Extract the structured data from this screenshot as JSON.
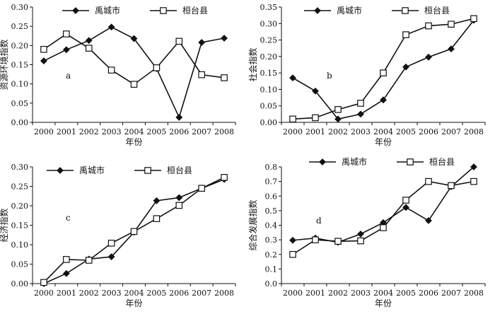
{
  "chart_data": [
    {
      "type": "line",
      "panel_label": "a",
      "xlabel": "年份",
      "ylabel": "资源环境指数",
      "ylim": [
        0,
        0.3
      ],
      "yticks": [
        "0.00",
        "0.05",
        "0.10",
        "0.15",
        "0.20",
        "0.25",
        "0.30"
      ],
      "categories": [
        "2000",
        "2001",
        "2002",
        "2003",
        "2004",
        "2005",
        "2006",
        "2007",
        "2008"
      ],
      "legend_position": "top",
      "series": [
        {
          "name": "禹城市",
          "marker": "diamond",
          "values": [
            0.16,
            0.189,
            0.213,
            0.248,
            0.218,
            0.14,
            0.013,
            0.208,
            0.219
          ]
        },
        {
          "name": "桓台县",
          "marker": "square",
          "values": [
            0.19,
            0.23,
            0.193,
            0.136,
            0.099,
            0.142,
            0.211,
            0.124,
            0.116
          ]
        }
      ]
    },
    {
      "type": "line",
      "panel_label": "b",
      "xlabel": "年份",
      "ylabel": "社会指数",
      "ylim": [
        0,
        0.35
      ],
      "yticks": [
        "0.00",
        "0.05",
        "0.10",
        "0.15",
        "0.20",
        "0.25",
        "0.30",
        "0.35"
      ],
      "categories": [
        "2000",
        "2001",
        "2002",
        "2003",
        "2004",
        "2005",
        "2006",
        "2007",
        "2008"
      ],
      "legend_position": "top",
      "series": [
        {
          "name": "禹城市",
          "marker": "diamond",
          "values": [
            0.135,
            0.095,
            0.01,
            0.025,
            0.068,
            0.168,
            0.198,
            0.223,
            0.31
          ]
        },
        {
          "name": "桓台县",
          "marker": "square",
          "values": [
            0.01,
            0.014,
            0.039,
            0.058,
            0.15,
            0.266,
            0.293,
            0.298,
            0.315
          ]
        }
      ]
    },
    {
      "type": "line",
      "panel_label": "c",
      "xlabel": "年份",
      "ylabel": "经济指数",
      "ylim": [
        0,
        0.3
      ],
      "yticks": [
        "0.00",
        "0.05",
        "0.10",
        "0.15",
        "0.20",
        "0.25",
        "0.30"
      ],
      "categories": [
        "2000",
        "2001",
        "2002",
        "2003",
        "2004",
        "2005",
        "2006",
        "2007",
        "2008"
      ],
      "legend_position": "top",
      "series": [
        {
          "name": "禹城市",
          "marker": "diamond",
          "values": [
            0.0,
            0.026,
            0.063,
            0.069,
            0.132,
            0.213,
            0.221,
            0.245,
            0.268
          ]
        },
        {
          "name": "桓台县",
          "marker": "square",
          "values": [
            0.003,
            0.062,
            0.06,
            0.104,
            0.134,
            0.167,
            0.201,
            0.245,
            0.273
          ]
        }
      ]
    },
    {
      "type": "line",
      "panel_label": "d",
      "xlabel": "年份",
      "ylabel": "综合发展指数",
      "ylim": [
        0,
        0.8
      ],
      "yticks": [
        "0.0",
        "0.1",
        "0.2",
        "0.3",
        "0.4",
        "0.5",
        "0.6",
        "0.7",
        "0.8"
      ],
      "categories": [
        "2000",
        "2001",
        "2002",
        "2003",
        "2004",
        "2005",
        "2006",
        "2007",
        "2008"
      ],
      "legend_position": "top",
      "series": [
        {
          "name": "禹城市",
          "marker": "diamond",
          "values": [
            0.297,
            0.312,
            0.283,
            0.34,
            0.418,
            0.522,
            0.432,
            0.665,
            0.8
          ]
        },
        {
          "name": "桓台县",
          "marker": "square",
          "values": [
            0.2,
            0.3,
            0.29,
            0.293,
            0.383,
            0.572,
            0.7,
            0.672,
            0.7
          ]
        }
      ]
    }
  ]
}
